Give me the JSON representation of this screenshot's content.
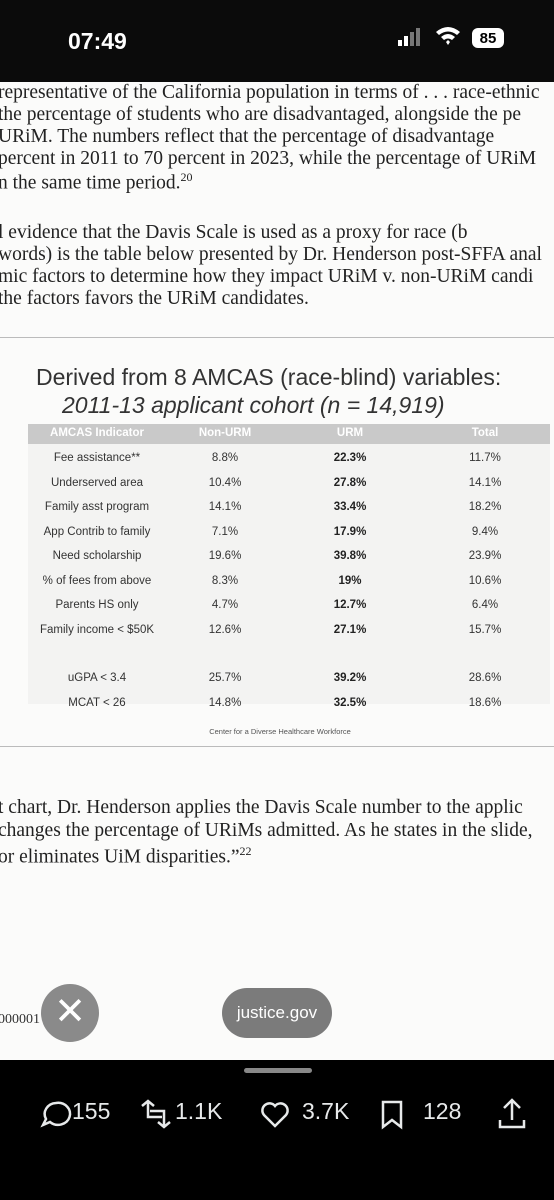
{
  "status_bar": {
    "time": "07:49",
    "battery": "85"
  },
  "document": {
    "paragraphs": [
      {
        "lines": [
          "representative of the California population in terms of . . . race-ethnic",
          "the percentage of students who are disadvantaged, alongside the pe",
          "URiM. The numbers reflect that the percentage of disadvantage",
          "percent in 2011 to 70 percent in 2023, while the percentage of URiM",
          "n the same time period."
        ],
        "note": "20"
      },
      {
        "lines": [
          "l evidence that the Davis Scale is used as a proxy for race (b",
          "words) is the table below presented by Dr. Henderson post-SFFA anal",
          "mic factors to determine how they impact URiM v. non-URiM candi",
          "the factors favors the URiM candidates."
        ]
      },
      {
        "lines": [
          "t chart, Dr. Henderson applies the Davis Scale number to the applic",
          "changes the percentage of URiMs admitted. As he states in the slide,",
          "or eliminates UiM disparities.”"
        ],
        "note": "22"
      }
    ],
    "slide": {
      "title": [
        "Derived from 8 AMCAS (race-blind) variables:",
        "2011-13 applicant cohort (n = 14,919)"
      ],
      "header": [
        "AMCAS Indicator",
        "Non-URM",
        "URM",
        "Total"
      ],
      "groups": [
        [
          [
            "Fee assistance**",
            "8.8%",
            "22.3%",
            "11.7%"
          ],
          [
            "Underserved area",
            "10.4%",
            "27.8%",
            "14.1%"
          ],
          [
            "Family asst program",
            "14.1%",
            "33.4%",
            "18.2%"
          ],
          [
            "App Contrib to family",
            "7.1%",
            "17.9%",
            "9.4%"
          ],
          [
            "Need scholarship",
            "19.6%",
            "39.8%",
            "23.9%"
          ],
          [
            "% of fees from above",
            "8.3%",
            "19%",
            "10.6%"
          ],
          [
            "Parents HS only",
            "4.7%",
            "12.7%",
            "6.4%"
          ],
          [
            "Family income < $50K",
            "12.6%",
            "27.1%",
            "15.7%"
          ]
        ],
        [
          [
            "uGPA < 3.4",
            "25.7%",
            "39.2%",
            "28.6%"
          ],
          [
            "MCAT < 26",
            "14.8%",
            "32.5%",
            "18.6%"
          ]
        ]
      ],
      "source": "Center for a Diverse Healthcare Workforce"
    },
    "footer_text": "000001"
  },
  "source_pill": "justice.gov",
  "actions": {
    "replies": "155",
    "reposts": "1.1K",
    "likes": "3.7K",
    "bookmarks": "128"
  }
}
